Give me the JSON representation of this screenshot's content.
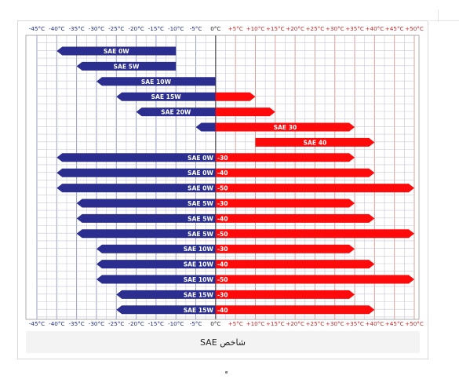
{
  "caption": "شاخص SAE",
  "colors": {
    "cold": "#2b2e8f",
    "hot": "#ff0a0a",
    "grid": "#c9c9d9",
    "cold_tick": "#1c2a80",
    "hot_tick": "#c0282a"
  },
  "chart_data": {
    "type": "bar",
    "xlabel": "",
    "ylabel": "",
    "x_range": [
      -45,
      50
    ],
    "x_unit": "°C",
    "ticks": [
      "-45°C",
      "-40°C",
      "-35°C",
      "-30°C",
      "-25°C",
      "-20°C",
      "-15°C",
      "-10°C",
      "-5°C",
      "0°C",
      "+5°C",
      "+10°C",
      "+15°C",
      "+20°C",
      "+25°C",
      "+30°C",
      "+35°C",
      "+40°C",
      "+45°C",
      "+50°C"
    ],
    "bars": [
      {
        "label": "SAE 0W",
        "cold_text": "SAE 0W",
        "hot_text": "",
        "min": -40,
        "max": -10
      },
      {
        "label": "SAE 5W",
        "cold_text": "SAE 5W",
        "hot_text": "",
        "min": -35,
        "max": -10
      },
      {
        "label": "SAE 10W",
        "cold_text": "SAE 10W",
        "hot_text": "",
        "min": -30,
        "max": 0
      },
      {
        "label": "SAE 15W",
        "cold_text": "SAE 15W",
        "hot_text": "",
        "min": -25,
        "max": 10
      },
      {
        "label": "SAE 20W",
        "cold_text": "SAE 20W",
        "hot_text": "",
        "min": -20,
        "max": 15
      },
      {
        "label": "SAE 30",
        "cold_text": "",
        "hot_text": "SAE 30",
        "min": -5,
        "max": 35
      },
      {
        "label": "SAE 40",
        "cold_text": "",
        "hot_text": "SAE 40",
        "min": 10,
        "max": 40
      },
      {
        "label": "SAE 0W-30",
        "cold_text": "SAE 0W",
        "hot_text": "-30",
        "min": -40,
        "max": 35
      },
      {
        "label": "SAE 0W-40",
        "cold_text": "SAE 0W",
        "hot_text": "-40",
        "min": -40,
        "max": 40
      },
      {
        "label": "SAE 0W-50",
        "cold_text": "SAE 0W",
        "hot_text": "-50",
        "min": -40,
        "max": 50
      },
      {
        "label": "SAE 5W-30",
        "cold_text": "SAE 5W",
        "hot_text": "-30",
        "min": -35,
        "max": 35
      },
      {
        "label": "SAE 5W-40",
        "cold_text": "SAE 5W",
        "hot_text": "-40",
        "min": -35,
        "max": 40
      },
      {
        "label": "SAE 5W-50",
        "cold_text": "SAE 5W",
        "hot_text": "-50",
        "min": -35,
        "max": 50
      },
      {
        "label": "SAE 10W-30",
        "cold_text": "SAE 10W",
        "hot_text": "-30",
        "min": -30,
        "max": 35
      },
      {
        "label": "SAE 10W-40",
        "cold_text": "SAE 10W",
        "hot_text": "-40",
        "min": -30,
        "max": 40
      },
      {
        "label": "SAE 10W-50",
        "cold_text": "SAE 10W",
        "hot_text": "-50",
        "min": -30,
        "max": 50
      },
      {
        "label": "SAE 15W-30",
        "cold_text": "SAE 15W",
        "hot_text": "-30",
        "min": -25,
        "max": 35
      },
      {
        "label": "SAE 15W-40",
        "cold_text": "SAE 15W",
        "hot_text": "-40",
        "min": -25,
        "max": 40
      }
    ]
  }
}
